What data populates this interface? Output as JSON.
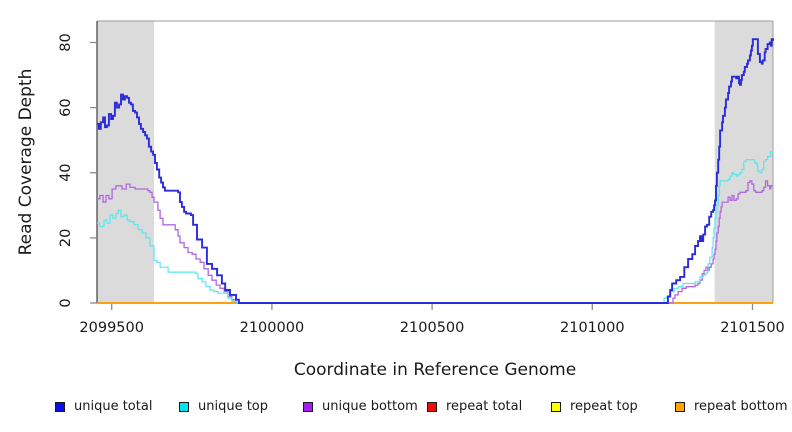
{
  "figure": {
    "xlabel": "Coordinate in Reference Genome",
    "ylabel": "Read Coverage Depth"
  },
  "colors": {
    "background": "#ffffff",
    "shaded_band": "#dbdbdb",
    "axis_dark": "#3f3f3f",
    "frame_light": "#9e9e9e",
    "tick": "#8c8c8c",
    "text": "#1a1a1a"
  },
  "legend": {
    "items": [
      {
        "label": "unique total",
        "color": "#0e0eea"
      },
      {
        "label": "unique top",
        "color": "#00e6ee"
      },
      {
        "label": "unique bottom",
        "color": "#a020f0"
      },
      {
        "label": "repeat total",
        "color": "#ee0c0c"
      },
      {
        "label": "repeat top",
        "color": "#feff00"
      },
      {
        "label": "repeat bottom",
        "color": "#ffa500"
      }
    ]
  },
  "chart_data": {
    "type": "line",
    "title": "",
    "xlabel": "Coordinate in Reference Genome",
    "ylabel": "Read Coverage Depth",
    "xlim": [
      2099454,
      2101564
    ],
    "ylim": [
      0,
      86.6
    ],
    "xticks": [
      2099500,
      2100000,
      2100500,
      2101000,
      2101500
    ],
    "yticks": [
      0,
      20,
      40,
      60,
      80
    ],
    "grid": false,
    "legend_position": "bottom",
    "step_interpolation": true,
    "shaded_regions": [
      {
        "name": "left-repeat-region",
        "x0": 2099454,
        "x1": 2099632
      },
      {
        "name": "right-repeat-region",
        "x0": 2101382,
        "x1": 2101564
      }
    ],
    "series": [
      {
        "name": "repeat total",
        "color": "#d40000",
        "width": 1.4,
        "points": [
          [
            2099454,
            0
          ],
          [
            2101564,
            0
          ]
        ]
      },
      {
        "name": "repeat top",
        "color": "#feff00",
        "width": 1.4,
        "points": [
          [
            2099454,
            0
          ],
          [
            2101564,
            0
          ]
        ]
      },
      {
        "name": "repeat bottom",
        "color": "#ff9d0a",
        "width": 1.6,
        "points": [
          [
            2099454,
            0
          ],
          [
            2101564,
            0
          ]
        ]
      },
      {
        "name": "unique bottom",
        "color": "#b168e0",
        "width": 1.3,
        "points": [
          [
            2099454,
            32
          ],
          [
            2099463,
            33
          ],
          [
            2099473,
            31
          ],
          [
            2099482,
            33
          ],
          [
            2099491,
            32
          ],
          [
            2099501,
            35
          ],
          [
            2099513,
            36
          ],
          [
            2099526,
            36
          ],
          [
            2099532,
            35
          ],
          [
            2099545,
            36.5
          ],
          [
            2099557,
            35.5
          ],
          [
            2099573,
            35
          ],
          [
            2099613,
            34.5
          ],
          [
            2099619,
            34
          ],
          [
            2099626,
            32.5
          ],
          [
            2099632,
            31
          ],
          [
            2099644,
            28.5
          ],
          [
            2099651,
            26
          ],
          [
            2099660,
            24
          ],
          [
            2099688,
            24
          ],
          [
            2099698,
            22.5
          ],
          [
            2099707,
            20.5
          ],
          [
            2099713,
            18.5
          ],
          [
            2099726,
            17
          ],
          [
            2099738,
            15.5
          ],
          [
            2099751,
            15
          ],
          [
            2099763,
            13.5
          ],
          [
            2099776,
            12.5
          ],
          [
            2099788,
            10.5
          ],
          [
            2099801,
            8.5
          ],
          [
            2099813,
            7
          ],
          [
            2099826,
            5.5
          ],
          [
            2099838,
            4.5
          ],
          [
            2099851,
            3.5
          ],
          [
            2099863,
            2
          ],
          [
            2099875,
            1
          ],
          [
            2099888,
            0
          ],
          [
            2101249,
            0
          ],
          [
            2101252,
            1.5
          ],
          [
            2101258,
            2.5
          ],
          [
            2101268,
            3.5
          ],
          [
            2101280,
            4.5
          ],
          [
            2101293,
            5
          ],
          [
            2101321,
            5.5
          ],
          [
            2101330,
            6
          ],
          [
            2101336,
            7
          ],
          [
            2101343,
            9
          ],
          [
            2101349,
            10
          ],
          [
            2101355,
            11
          ],
          [
            2101360,
            10
          ],
          [
            2101365,
            11
          ],
          [
            2101371,
            12
          ],
          [
            2101377,
            13.5
          ],
          [
            2101380,
            15
          ],
          [
            2101383,
            16.5
          ],
          [
            2101386,
            19
          ],
          [
            2101389,
            21.5
          ],
          [
            2101393,
            23.5
          ],
          [
            2101396,
            26
          ],
          [
            2101399,
            28
          ],
          [
            2101402,
            29.5
          ],
          [
            2101405,
            31
          ],
          [
            2101417,
            31
          ],
          [
            2101424,
            32.5
          ],
          [
            2101430,
            31.5
          ],
          [
            2101436,
            33
          ],
          [
            2101442,
            31.5
          ],
          [
            2101449,
            32
          ],
          [
            2101455,
            33.5
          ],
          [
            2101461,
            34
          ],
          [
            2101473,
            34
          ],
          [
            2101479,
            34.5
          ],
          [
            2101486,
            37
          ],
          [
            2101492,
            37.5
          ],
          [
            2101498,
            36.5
          ],
          [
            2101504,
            34.5
          ],
          [
            2101510,
            34
          ],
          [
            2101523,
            34
          ],
          [
            2101529,
            34.5
          ],
          [
            2101535,
            35.5
          ],
          [
            2101541,
            37.5
          ],
          [
            2101547,
            36
          ],
          [
            2101554,
            35
          ],
          [
            2101557,
            36
          ],
          [
            2101564,
            36
          ]
        ]
      },
      {
        "name": "unique top",
        "color": "#55e7ee",
        "width": 1.2,
        "points": [
          [
            2099454,
            24.5
          ],
          [
            2099463,
            23.5
          ],
          [
            2099476,
            25.5
          ],
          [
            2099485,
            24.5
          ],
          [
            2099495,
            27
          ],
          [
            2099504,
            26
          ],
          [
            2099513,
            27.5
          ],
          [
            2099520,
            28.5
          ],
          [
            2099529,
            26.5
          ],
          [
            2099538,
            27
          ],
          [
            2099548,
            25.5
          ],
          [
            2099557,
            25
          ],
          [
            2099570,
            24
          ],
          [
            2099582,
            22.5
          ],
          [
            2099595,
            21.5
          ],
          [
            2099607,
            20
          ],
          [
            2099619,
            17.5
          ],
          [
            2099632,
            13
          ],
          [
            2099641,
            12.5
          ],
          [
            2099651,
            11
          ],
          [
            2099669,
            11
          ],
          [
            2099676,
            9.5
          ],
          [
            2099763,
            9
          ],
          [
            2099769,
            7.5
          ],
          [
            2099782,
            6.5
          ],
          [
            2099794,
            5
          ],
          [
            2099807,
            4
          ],
          [
            2099819,
            3.5
          ],
          [
            2099832,
            3
          ],
          [
            2099857,
            3
          ],
          [
            2099863,
            1.5
          ],
          [
            2099875,
            0.5
          ],
          [
            2099888,
            0
          ],
          [
            2101221,
            0
          ],
          [
            2101224,
            1.5
          ],
          [
            2101233,
            2
          ],
          [
            2101243,
            3.5
          ],
          [
            2101255,
            4.5
          ],
          [
            2101268,
            5
          ],
          [
            2101283,
            6
          ],
          [
            2101321,
            6.5
          ],
          [
            2101336,
            8
          ],
          [
            2101346,
            8.5
          ],
          [
            2101352,
            9
          ],
          [
            2101358,
            9.5
          ],
          [
            2101361,
            12
          ],
          [
            2101367,
            14
          ],
          [
            2101374,
            17
          ],
          [
            2101377,
            20
          ],
          [
            2101380,
            23
          ],
          [
            2101383,
            26
          ],
          [
            2101386,
            28
          ],
          [
            2101389,
            30
          ],
          [
            2101393,
            33
          ],
          [
            2101396,
            36
          ],
          [
            2101399,
            37.5
          ],
          [
            2101424,
            38
          ],
          [
            2101430,
            39
          ],
          [
            2101436,
            40
          ],
          [
            2101442,
            39.5
          ],
          [
            2101449,
            39
          ],
          [
            2101455,
            39.5
          ],
          [
            2101461,
            40
          ],
          [
            2101467,
            41
          ],
          [
            2101473,
            43.5
          ],
          [
            2101479,
            44
          ],
          [
            2101501,
            44
          ],
          [
            2101507,
            43
          ],
          [
            2101514,
            42
          ],
          [
            2101517,
            40.5
          ],
          [
            2101523,
            40
          ],
          [
            2101529,
            41
          ],
          [
            2101535,
            43.5
          ],
          [
            2101541,
            44
          ],
          [
            2101547,
            45
          ],
          [
            2101557,
            46.5
          ],
          [
            2101564,
            46
          ]
        ]
      },
      {
        "name": "unique total",
        "color": "#2b2bdb",
        "width": 1.9,
        "points": [
          [
            2099454,
            55
          ],
          [
            2099460,
            53.5
          ],
          [
            2099466,
            55.5
          ],
          [
            2099473,
            57
          ],
          [
            2099479,
            54
          ],
          [
            2099485,
            54.5
          ],
          [
            2099491,
            58
          ],
          [
            2099498,
            56.5
          ],
          [
            2099504,
            57.5
          ],
          [
            2099510,
            61.5
          ],
          [
            2099516,
            60
          ],
          [
            2099523,
            61
          ],
          [
            2099529,
            64
          ],
          [
            2099535,
            62.5
          ],
          [
            2099541,
            63.5
          ],
          [
            2099548,
            63
          ],
          [
            2099554,
            61.5
          ],
          [
            2099560,
            61
          ],
          [
            2099566,
            59
          ],
          [
            2099573,
            58.5
          ],
          [
            2099579,
            57
          ],
          [
            2099585,
            55
          ],
          [
            2099591,
            53.5
          ],
          [
            2099598,
            52.5
          ],
          [
            2099604,
            51.5
          ],
          [
            2099610,
            50.5
          ],
          [
            2099616,
            48
          ],
          [
            2099623,
            46.5
          ],
          [
            2099629,
            45.5
          ],
          [
            2099635,
            43
          ],
          [
            2099641,
            41
          ],
          [
            2099648,
            38.5
          ],
          [
            2099654,
            37
          ],
          [
            2099660,
            35.5
          ],
          [
            2099666,
            34.5
          ],
          [
            2099707,
            34
          ],
          [
            2099713,
            31
          ],
          [
            2099719,
            29.5
          ],
          [
            2099726,
            28
          ],
          [
            2099732,
            27.5
          ],
          [
            2099747,
            27
          ],
          [
            2099754,
            24
          ],
          [
            2099766,
            19.5
          ],
          [
            2099782,
            17
          ],
          [
            2099797,
            12
          ],
          [
            2099813,
            10.5
          ],
          [
            2099829,
            8.5
          ],
          [
            2099844,
            6
          ],
          [
            2099854,
            4
          ],
          [
            2099869,
            2.5
          ],
          [
            2099882,
            2.5
          ],
          [
            2099888,
            1
          ],
          [
            2099897,
            0
          ],
          [
            2101233,
            0
          ],
          [
            2101236,
            2
          ],
          [
            2101243,
            4
          ],
          [
            2101249,
            6
          ],
          [
            2101262,
            7
          ],
          [
            2101274,
            8
          ],
          [
            2101287,
            11
          ],
          [
            2101299,
            13.5
          ],
          [
            2101312,
            15
          ],
          [
            2101321,
            17.5
          ],
          [
            2101330,
            19
          ],
          [
            2101336,
            20.5
          ],
          [
            2101341,
            19
          ],
          [
            2101346,
            21
          ],
          [
            2101352,
            23.5
          ],
          [
            2101358,
            24
          ],
          [
            2101365,
            26.5
          ],
          [
            2101371,
            28
          ],
          [
            2101377,
            28.5
          ],
          [
            2101380,
            30
          ],
          [
            2101383,
            31.5
          ],
          [
            2101386,
            36
          ],
          [
            2101389,
            40
          ],
          [
            2101393,
            44
          ],
          [
            2101396,
            48
          ],
          [
            2101399,
            53
          ],
          [
            2101405,
            55.5
          ],
          [
            2101408,
            57.5
          ],
          [
            2101414,
            60
          ],
          [
            2101417,
            62.5
          ],
          [
            2101424,
            64.5
          ],
          [
            2101427,
            66.5
          ],
          [
            2101433,
            68
          ],
          [
            2101436,
            69.5
          ],
          [
            2101449,
            69
          ],
          [
            2101455,
            69.5
          ],
          [
            2101458,
            67.5
          ],
          [
            2101461,
            67
          ],
          [
            2101464,
            68.5
          ],
          [
            2101467,
            70
          ],
          [
            2101473,
            71
          ],
          [
            2101476,
            72.5
          ],
          [
            2101483,
            73.5
          ],
          [
            2101486,
            74.5
          ],
          [
            2101492,
            76
          ],
          [
            2101495,
            77.5
          ],
          [
            2101498,
            79
          ],
          [
            2101501,
            81
          ],
          [
            2101514,
            81
          ],
          [
            2101517,
            76.5
          ],
          [
            2101523,
            74
          ],
          [
            2101529,
            73.5
          ],
          [
            2101532,
            74.5
          ],
          [
            2101538,
            77
          ],
          [
            2101541,
            78
          ],
          [
            2101547,
            79.5
          ],
          [
            2101554,
            80
          ],
          [
            2101557,
            79
          ],
          [
            2101560,
            81
          ],
          [
            2101564,
            80.5
          ]
        ]
      }
    ]
  }
}
